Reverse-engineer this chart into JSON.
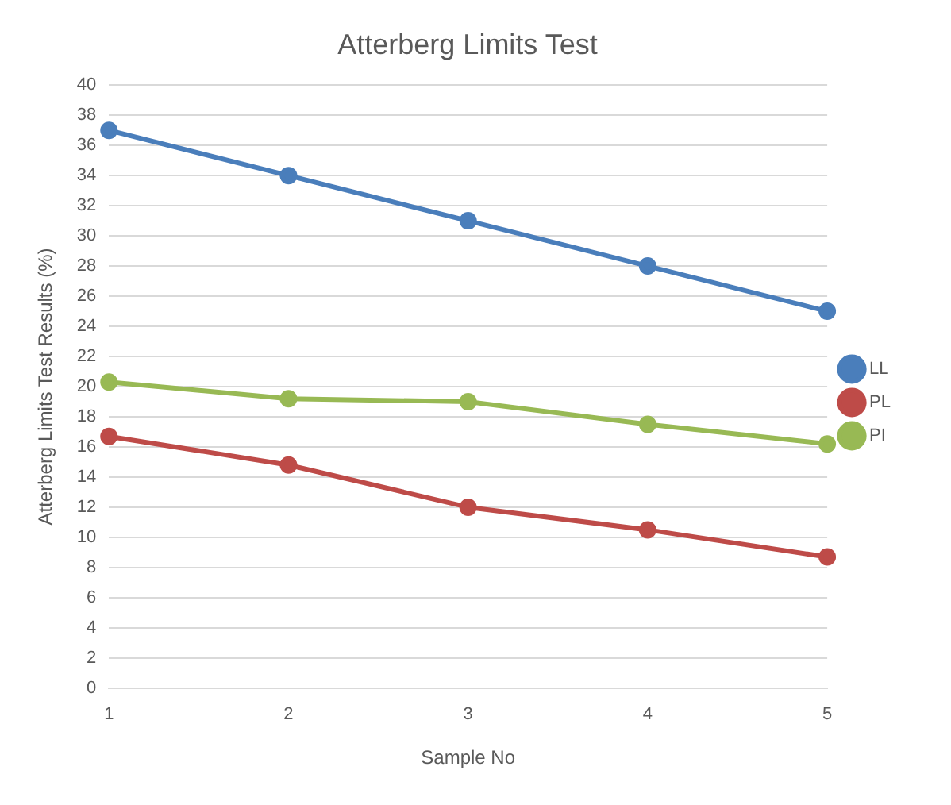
{
  "chart_data": {
    "type": "line",
    "title": "Atterberg Limits Test",
    "xlabel": "Sample No",
    "ylabel": "Atterberg Limits Test Results (%)",
    "categories": [
      "1",
      "2",
      "3",
      "4",
      "5"
    ],
    "series": [
      {
        "name": "LL",
        "color": "#4a7ebb",
        "values": [
          37,
          34,
          31,
          28,
          25
        ]
      },
      {
        "name": "PL",
        "color": "#be4b48",
        "values": [
          16.7,
          14.8,
          12,
          10.5,
          8.7
        ]
      },
      {
        "name": "PI",
        "color": "#98b954",
        "values": [
          20.3,
          19.2,
          19,
          17.5,
          16.2
        ]
      }
    ],
    "ylim": [
      0,
      40
    ],
    "yticks": [
      0,
      2,
      4,
      6,
      8,
      10,
      12,
      14,
      16,
      18,
      20,
      22,
      24,
      26,
      28,
      30,
      32,
      34,
      36,
      38,
      40
    ],
    "grid": "y",
    "legend": "right",
    "marker": "circle",
    "line_style": "solid"
  }
}
